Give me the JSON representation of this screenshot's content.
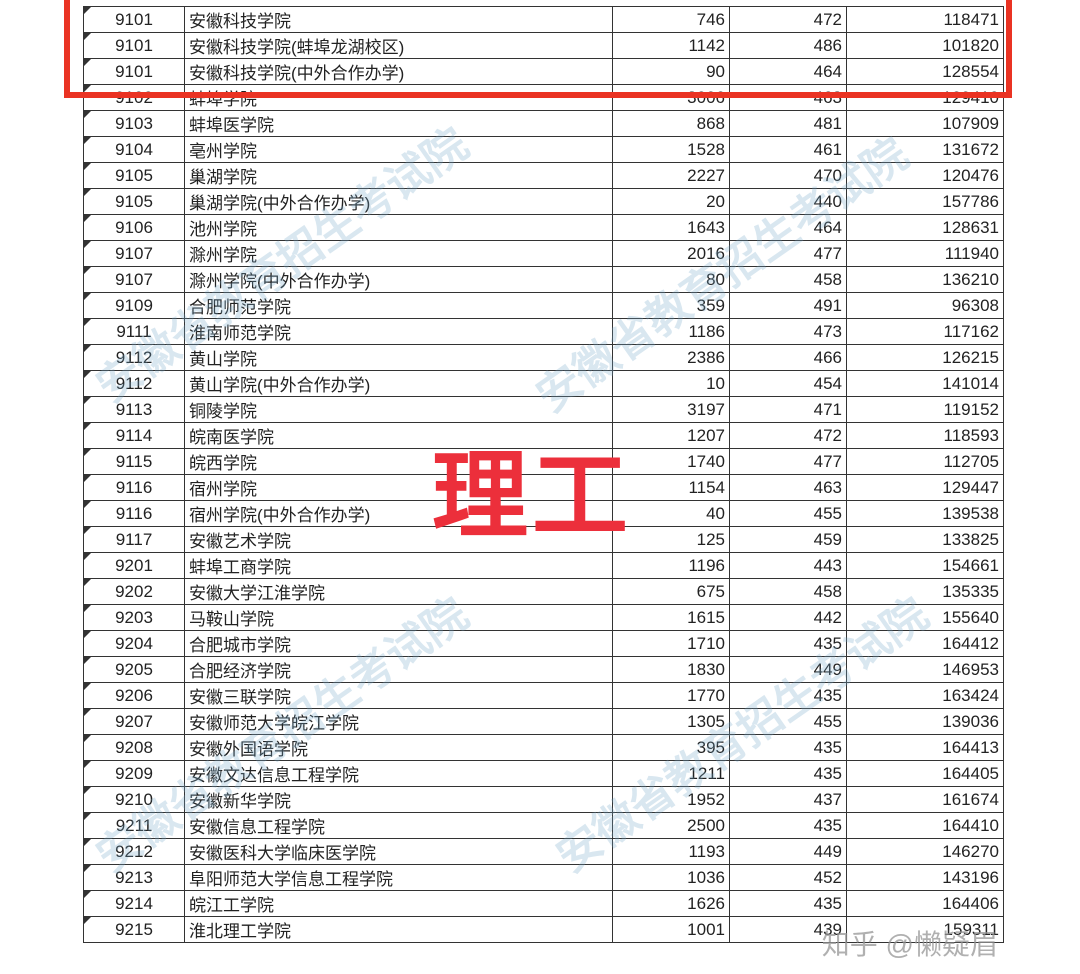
{
  "table": {
    "rows": [
      [
        "9101",
        "安徽科技学院",
        "746",
        "472",
        "118471"
      ],
      [
        "9101",
        "安徽科技学院(蚌埠龙湖校区)",
        "1142",
        "486",
        "101820"
      ],
      [
        "9101",
        "安徽科技学院(中外合作办学)",
        "90",
        "464",
        "128554"
      ],
      [
        "9102",
        "蚌埠学院",
        "3006",
        "463",
        "129410"
      ],
      [
        "9103",
        "蚌埠医学院",
        "868",
        "481",
        "107909"
      ],
      [
        "9104",
        "亳州学院",
        "1528",
        "461",
        "131672"
      ],
      [
        "9105",
        "巢湖学院",
        "2227",
        "470",
        "120476"
      ],
      [
        "9105",
        "巢湖学院(中外合作办学)",
        "20",
        "440",
        "157786"
      ],
      [
        "9106",
        "池州学院",
        "1643",
        "464",
        "128631"
      ],
      [
        "9107",
        "滁州学院",
        "2016",
        "477",
        "111940"
      ],
      [
        "9107",
        "滁州学院(中外合作办学)",
        "80",
        "458",
        "136210"
      ],
      [
        "9109",
        "合肥师范学院",
        "359",
        "491",
        "96308"
      ],
      [
        "9111",
        "淮南师范学院",
        "1186",
        "473",
        "117162"
      ],
      [
        "9112",
        "黄山学院",
        "2386",
        "466",
        "126215"
      ],
      [
        "9112",
        "黄山学院(中外合作办学)",
        "10",
        "454",
        "141014"
      ],
      [
        "9113",
        "铜陵学院",
        "3197",
        "471",
        "119152"
      ],
      [
        "9114",
        "皖南医学院",
        "1207",
        "472",
        "118593"
      ],
      [
        "9115",
        "皖西学院",
        "1740",
        "477",
        "112705"
      ],
      [
        "9116",
        "宿州学院",
        "1154",
        "463",
        "129447"
      ],
      [
        "9116",
        "宿州学院(中外合作办学)",
        "40",
        "455",
        "139538"
      ],
      [
        "9117",
        "安徽艺术学院",
        "125",
        "459",
        "133825"
      ],
      [
        "9201",
        "蚌埠工商学院",
        "1196",
        "443",
        "154661"
      ],
      [
        "9202",
        "安徽大学江淮学院",
        "675",
        "458",
        "135335"
      ],
      [
        "9203",
        "马鞍山学院",
        "1615",
        "442",
        "155640"
      ],
      [
        "9204",
        "合肥城市学院",
        "1710",
        "435",
        "164412"
      ],
      [
        "9205",
        "合肥经济学院",
        "1830",
        "449",
        "146953"
      ],
      [
        "9206",
        "安徽三联学院",
        "1770",
        "435",
        "163424"
      ],
      [
        "9207",
        "安徽师范大学皖江学院",
        "1305",
        "455",
        "139036"
      ],
      [
        "9208",
        "安徽外国语学院",
        "395",
        "435",
        "164413"
      ],
      [
        "9209",
        "安徽文达信息工程学院",
        "1211",
        "435",
        "164405"
      ],
      [
        "9210",
        "安徽新华学院",
        "1952",
        "437",
        "161674"
      ],
      [
        "9211",
        "安徽信息工程学院",
        "2500",
        "435",
        "164410"
      ],
      [
        "9212",
        "安徽医科大学临床医学院",
        "1193",
        "449",
        "146270"
      ],
      [
        "9213",
        "阜阳师范大学信息工程学院",
        "1036",
        "452",
        "143196"
      ],
      [
        "9214",
        "皖江工学院",
        "1626",
        "435",
        "164406"
      ],
      [
        "9215",
        "淮北理工学院",
        "1001",
        "439",
        "159311"
      ]
    ]
  },
  "overlay": {
    "label": "理工",
    "highlight_color": "#ea3323",
    "label_color": "#ec2f3b"
  },
  "watermark": {
    "text": "安徽省教育招生考试院",
    "credit": "知乎 @懒疑眉"
  }
}
